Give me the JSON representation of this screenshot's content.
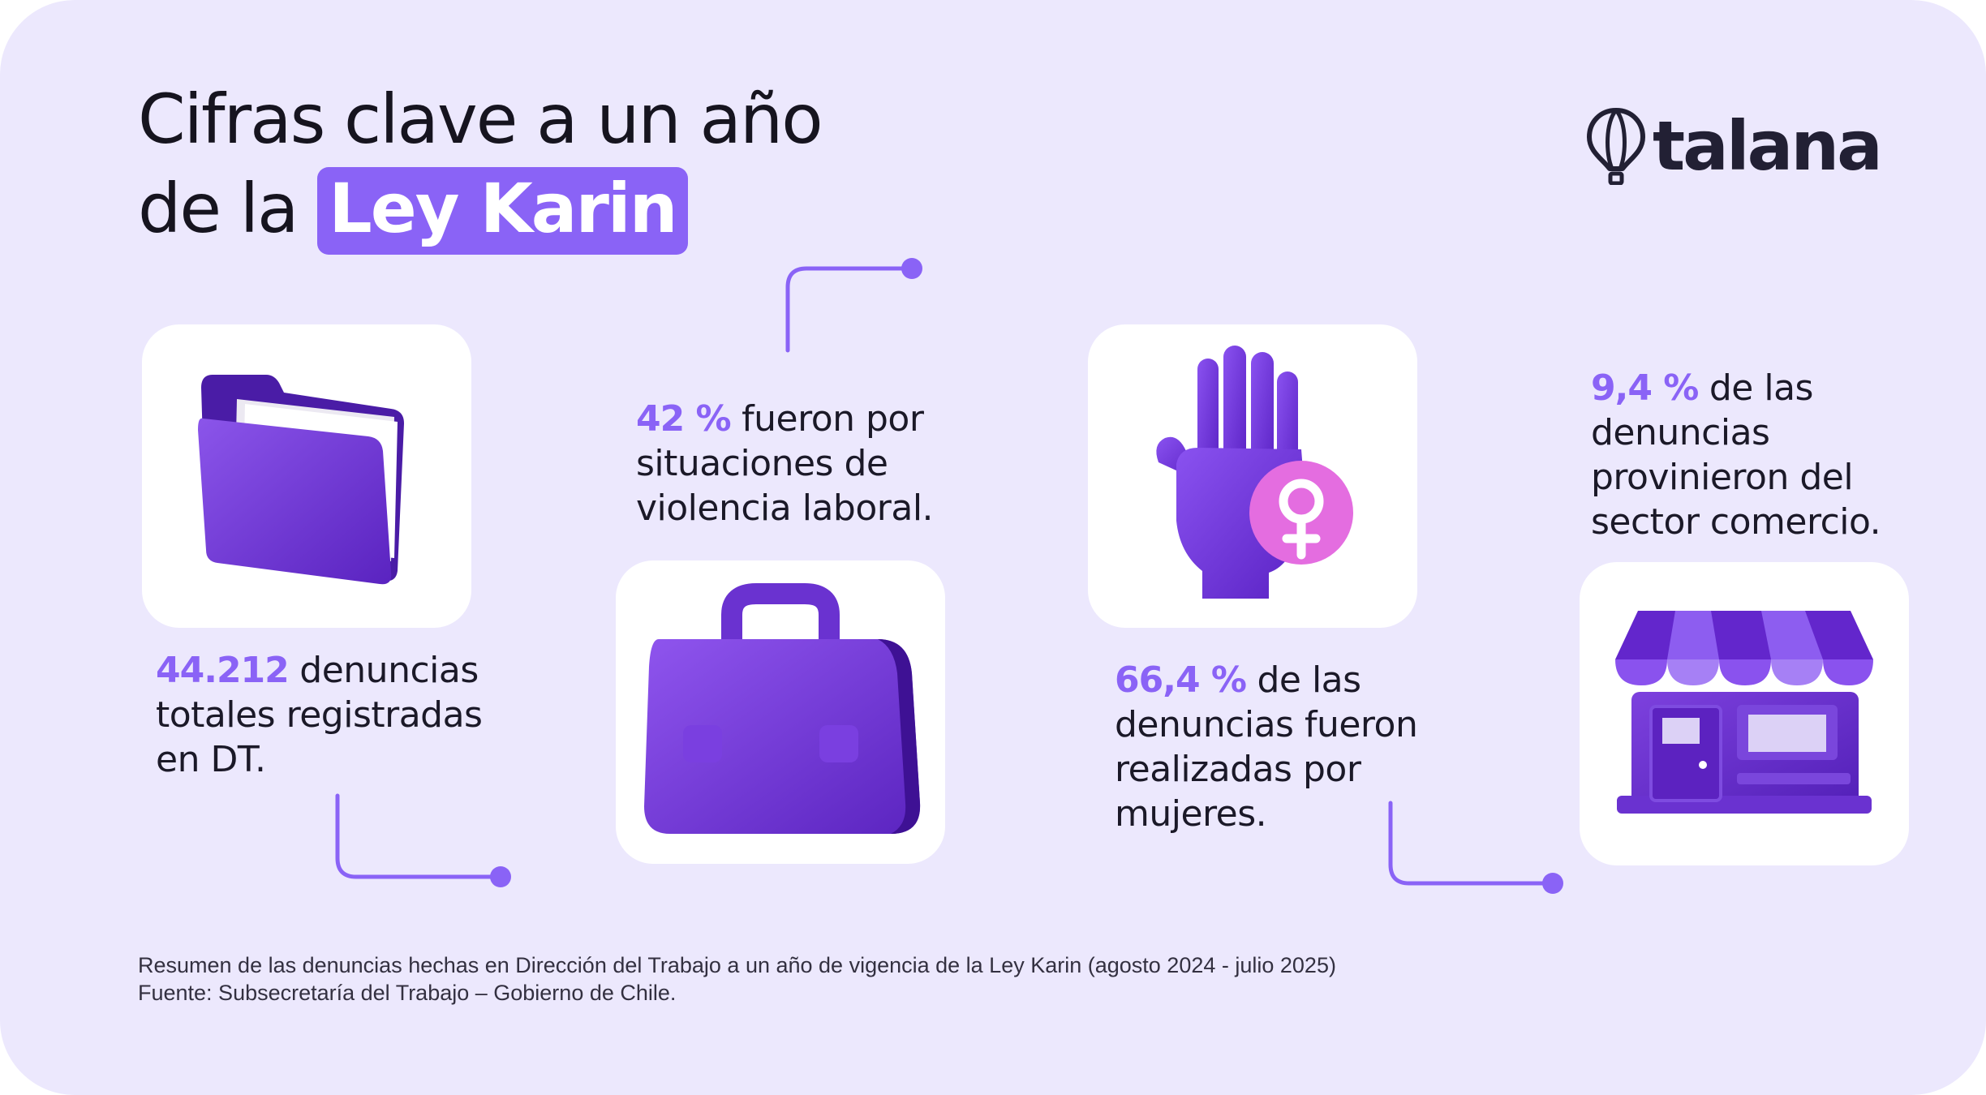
{
  "title": {
    "line1": "Cifras clave a un año",
    "line2_prefix": "de la",
    "highlight": "Ley Karin"
  },
  "brand": {
    "name": "talana",
    "logo_icon": "hot-air-balloon-icon"
  },
  "colors": {
    "background": "#ece8fd",
    "accent": "#8a63f6",
    "text": "#1b1928",
    "tile": "#ffffff",
    "icon_purple": "#6e33d6"
  },
  "stats": [
    {
      "icon": "folder-icon",
      "value": "44.212",
      "lines": [
        "denuncias",
        "totales registradas",
        "en DT."
      ]
    },
    {
      "icon": "briefcase-icon",
      "value": "42 %",
      "lines": [
        "fueron por",
        "situaciones de",
        "violencia laboral."
      ]
    },
    {
      "icon": "raised-hand-female-symbol-icon",
      "value": "66,4 %",
      "lines": [
        "de las",
        "denuncias fueron",
        "realizadas por",
        "mujeres."
      ]
    },
    {
      "icon": "storefront-icon",
      "value": "9,4 %",
      "lines": [
        "de las",
        "denuncias",
        "provinieron del",
        "sector comercio."
      ]
    }
  ],
  "footnote": {
    "line1": "Resumen de las denuncias hechas en Dirección del Trabajo a un año de vigencia de la Ley Karin (agosto 2024 - julio 2025)",
    "line2": "Fuente: Subsecretaría del Trabajo – Gobierno de Chile."
  }
}
